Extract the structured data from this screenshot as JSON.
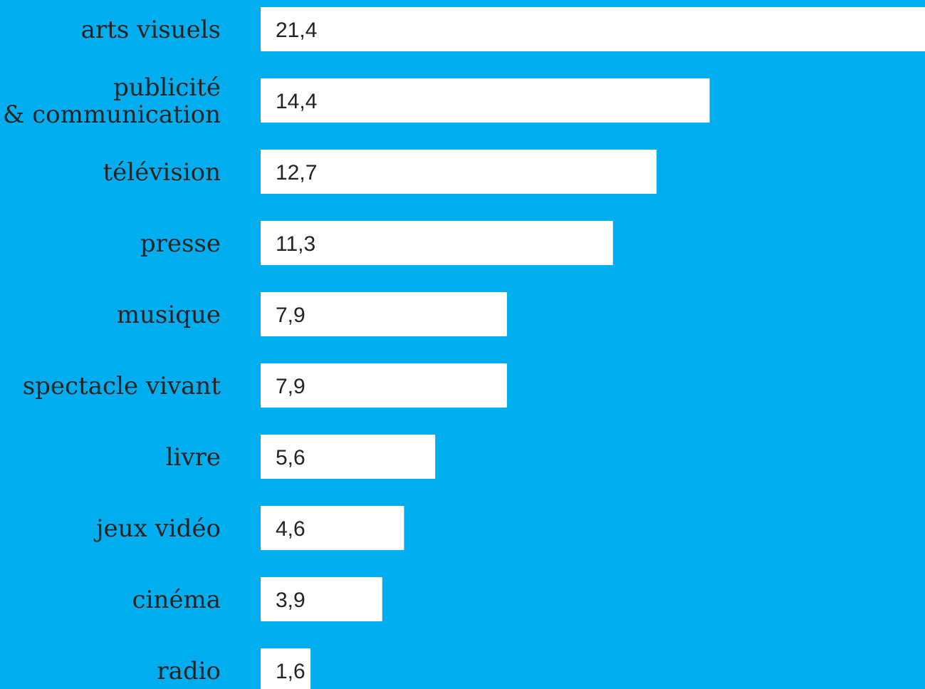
{
  "colors": {
    "background": "#00aeef",
    "bar": "#ffffff",
    "text": "#232323"
  },
  "chart_data": {
    "type": "bar",
    "orientation": "horizontal",
    "categories": [
      "arts visuels",
      "publicité\n& communication",
      "télévision",
      "presse",
      "musique",
      "spectacle vivant",
      "livre",
      "jeux vidéo",
      "cinéma",
      "radio"
    ],
    "values": [
      21.4,
      14.4,
      12.7,
      11.3,
      7.9,
      7.9,
      5.6,
      4.6,
      3.9,
      1.6
    ],
    "value_labels": [
      "21,4",
      "14,4",
      "12,7",
      "11,3",
      "7,9",
      "7,9",
      "5,6",
      "4,6",
      "3,9",
      "1,6"
    ],
    "title": "",
    "xlabel": "",
    "ylabel": "",
    "grid": false,
    "legend": "none"
  }
}
